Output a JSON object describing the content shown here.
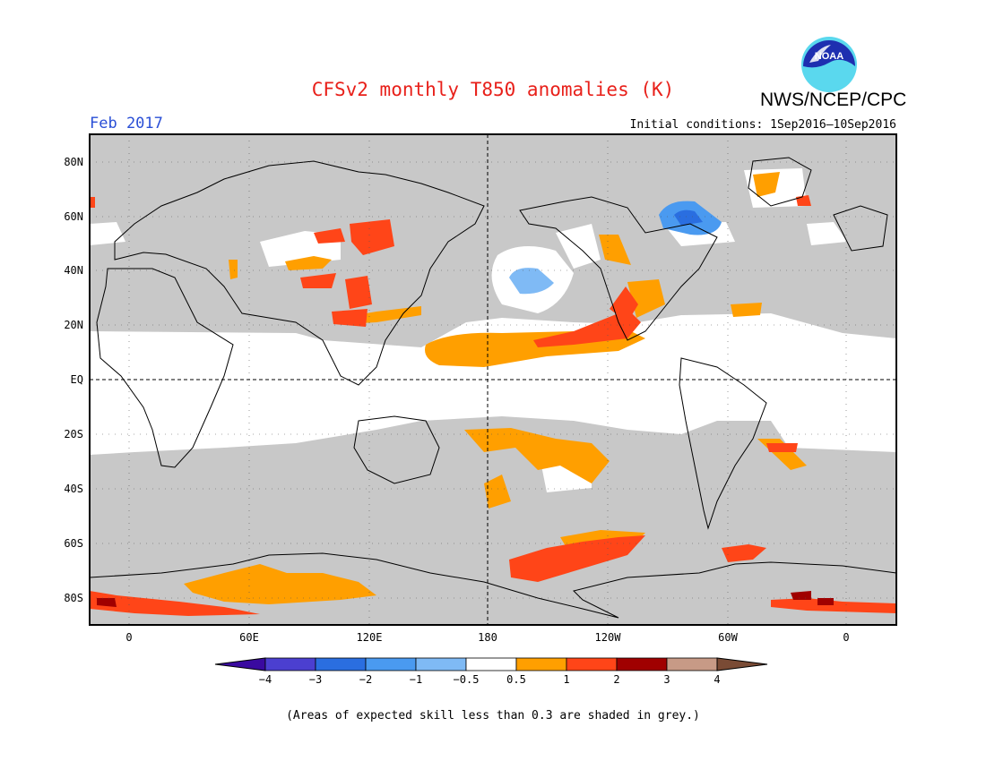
{
  "title": "CFSv2 monthly T850 anomalies (K)",
  "agency": "NWS/NCEP/CPC",
  "logo_text": "NOAA",
  "period": "Feb 2017",
  "initial_conditions": "Initial conditions: 1Sep2016–10Sep2016",
  "footnote": "(Areas of expected skill less than 0.3 are shaded in grey.)",
  "colors": {
    "title": "#e8201a",
    "period": "#2a4fd6",
    "grey_low_skill": "#c8c8c8",
    "land_outline": "#000000"
  },
  "map": {
    "lat_labels": [
      "80N",
      "60N",
      "40N",
      "20N",
      "EQ",
      "20S",
      "40S",
      "60S",
      "80S"
    ],
    "lon_labels": [
      "0",
      "60E",
      "120E",
      "180",
      "120W",
      "60W",
      "0"
    ]
  },
  "colorbar": {
    "labels": [
      "−4",
      "−3",
      "−2",
      "−1",
      "−0.5",
      "0.5",
      "1",
      "2",
      "3",
      "4"
    ],
    "colors": [
      "#3a0aa0",
      "#4b3fd0",
      "#2a6ee0",
      "#4a9af0",
      "#7fbaf5",
      "#ffffff",
      "#ff9f00",
      "#ff4518",
      "#a00000",
      "#c79a86",
      "#7a4b35"
    ]
  }
}
